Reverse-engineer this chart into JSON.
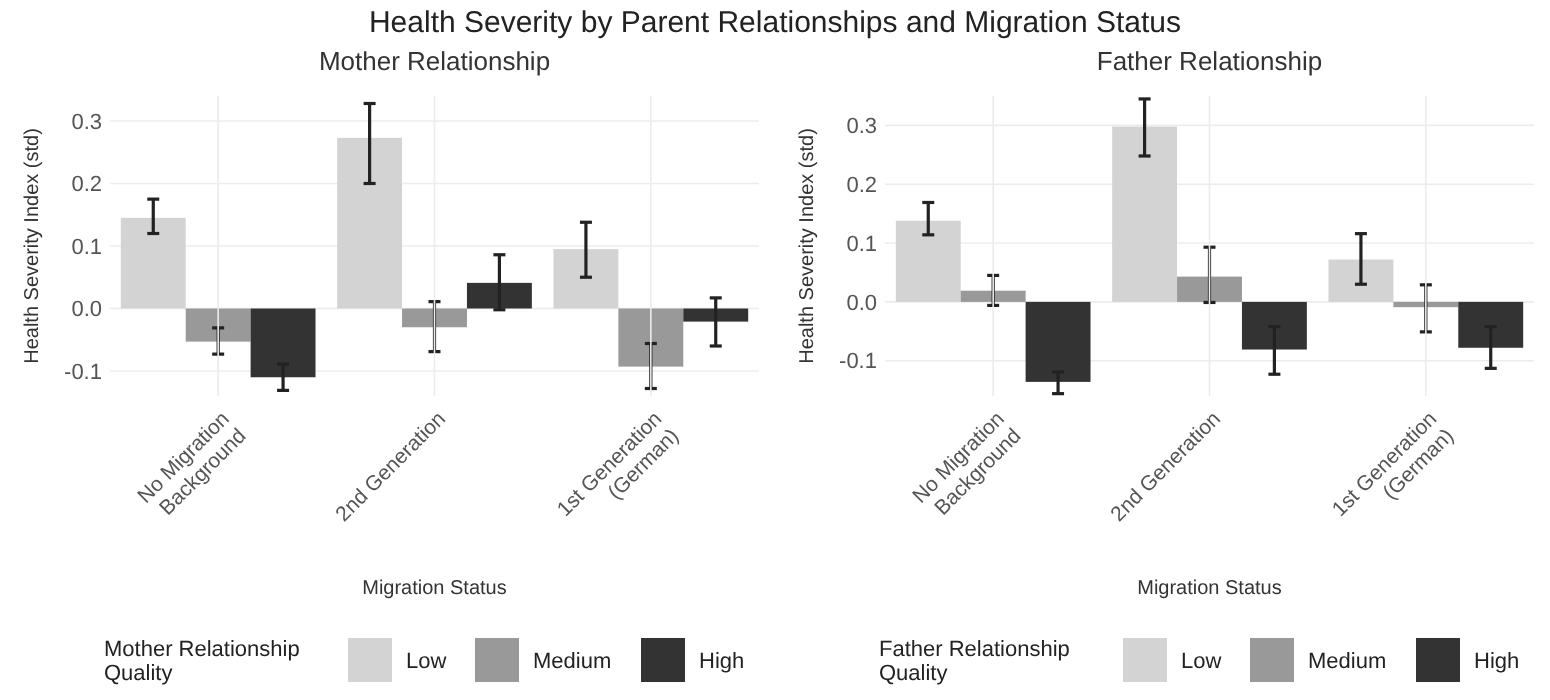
{
  "chart_data": [
    {
      "type": "bar",
      "title": "Health Severity by Parent Relationships and Migration Status",
      "subtitle": "Mother Relationship",
      "xlabel": "Migration Status",
      "ylabel": "Health Severity Index (std)",
      "legend_title": "Mother Relationship Quality",
      "categories": [
        "No Migration\nBackground",
        "2nd Generation",
        "1st Generation\n(German)"
      ],
      "series": [
        {
          "name": "Low",
          "color": "#d3d3d3",
          "values": [
            0.145,
            0.273,
            0.095
          ],
          "errors": [
            [
              0.12,
              0.175
            ],
            [
              0.2,
              0.328
            ],
            [
              0.05,
              0.138
            ]
          ]
        },
        {
          "name": "Medium",
          "color": "#999999",
          "values": [
            -0.053,
            -0.03,
            -0.093
          ],
          "errors": [
            [
              -0.073,
              -0.031
            ],
            [
              -0.069,
              0.011
            ],
            [
              -0.128,
              -0.056
            ]
          ]
        },
        {
          "name": "High",
          "color": "#333333",
          "values": [
            -0.11,
            0.041,
            -0.021
          ],
          "errors": [
            [
              -0.131,
              -0.089
            ],
            [
              -0.002,
              0.086
            ],
            [
              -0.06,
              0.017
            ]
          ]
        }
      ],
      "ylim": [
        -0.14,
        0.34
      ],
      "yticks": [
        {
          "value": -0.1,
          "label": "-0.1"
        },
        {
          "value": 0,
          "label": "0.0"
        },
        {
          "value": 0.1,
          "label": "0.1"
        },
        {
          "value": 0.2,
          "label": "0.2"
        },
        {
          "value": 0.3,
          "label": "0.3"
        }
      ],
      "grid": true,
      "legend": "bottom"
    },
    {
      "type": "bar",
      "subtitle": "Father Relationship",
      "xlabel": "Migration Status",
      "ylabel": "Health Severity Index (std)",
      "legend_title": "Father Relationship Quality",
      "categories": [
        "No Migration\nBackground",
        "2nd Generation",
        "1st Generation\n(German)"
      ],
      "series": [
        {
          "name": "Low",
          "color": "#d3d3d3",
          "values": [
            0.138,
            0.298,
            0.072
          ],
          "errors": [
            [
              0.114,
              0.169
            ],
            [
              0.248,
              0.345
            ],
            [
              0.03,
              0.116
            ]
          ]
        },
        {
          "name": "Medium",
          "color": "#999999",
          "values": [
            0.019,
            0.043,
            -0.009
          ],
          "errors": [
            [
              -0.006,
              0.045
            ],
            [
              -0.001,
              0.093
            ],
            [
              -0.051,
              0.029
            ]
          ]
        },
        {
          "name": "High",
          "color": "#333333",
          "values": [
            -0.136,
            -0.081,
            -0.078
          ],
          "errors": [
            [
              -0.156,
              -0.119
            ],
            [
              -0.123,
              -0.042
            ],
            [
              -0.113,
              -0.042
            ]
          ]
        }
      ],
      "ylim": [
        -0.16,
        0.35
      ],
      "yticks": [
        {
          "value": -0.1,
          "label": "-0.1"
        },
        {
          "value": 0,
          "label": "0.0"
        },
        {
          "value": 0.1,
          "label": "0.1"
        },
        {
          "value": 0.2,
          "label": "0.2"
        },
        {
          "value": 0.3,
          "label": "0.3"
        }
      ],
      "grid": true,
      "legend": "bottom"
    }
  ]
}
